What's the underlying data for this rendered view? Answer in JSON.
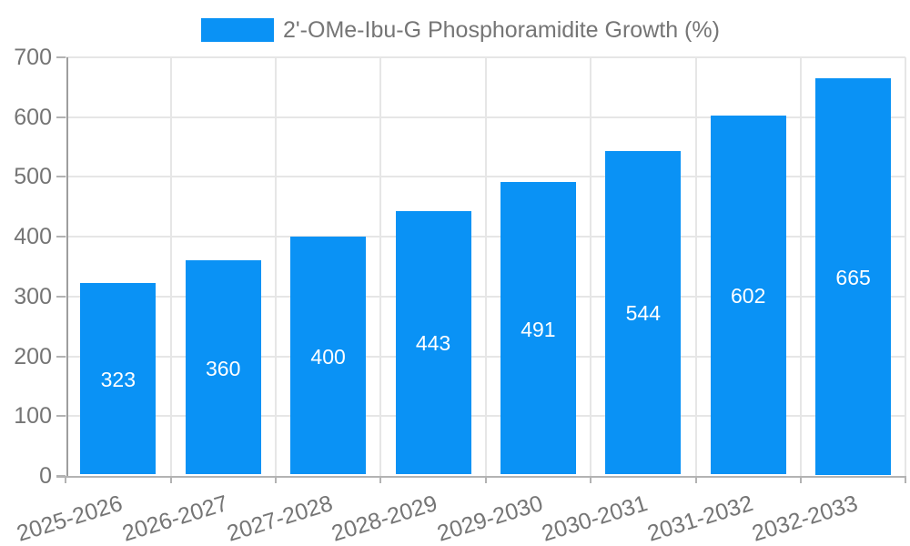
{
  "legend": {
    "series_label": "2'-OMe-Ibu-G Phosphoramidite Growth (%)"
  },
  "chart_data": {
    "type": "bar",
    "title": "2'-OMe-Ibu-G Phosphoramidite Growth (%)",
    "xlabel": "",
    "ylabel": "",
    "categories": [
      "2025-2026",
      "2026-2027",
      "2027-2028",
      "2028-2029",
      "2029-2030",
      "2030-2031",
      "2031-2032",
      "2032-2033"
    ],
    "values": [
      323,
      360,
      400,
      443,
      491,
      544,
      602,
      665
    ],
    "bar_value_labels": [
      "323",
      "360",
      "400",
      "443",
      "491",
      "544",
      "602",
      "665"
    ],
    "y_ticks": [
      0,
      100,
      200,
      300,
      400,
      500,
      600,
      700
    ],
    "ylim": [
      0,
      700
    ],
    "grid": true,
    "legend_position": "top-center",
    "colors": {
      "bar": "#0A92F5",
      "bar_label": "#FFFFFF",
      "axis_text": "#757575",
      "gridline": "#E6E6E6",
      "y_axis_line": "#9E9E9E",
      "x_axis_line": "#B3B3B3",
      "tick": "#B3B3B3",
      "background": "#FFFFFF"
    }
  }
}
